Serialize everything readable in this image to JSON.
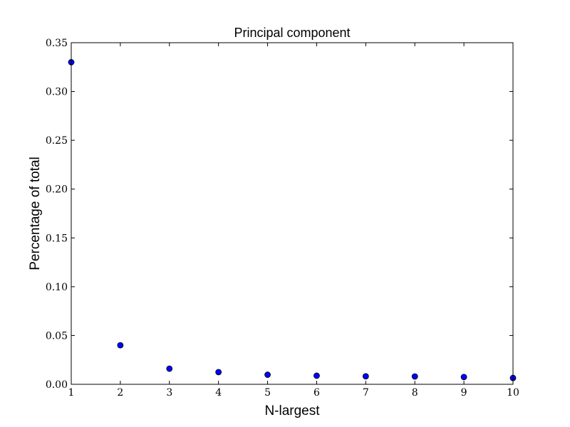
{
  "chart_data": {
    "type": "scatter",
    "title": "Principal component",
    "xlabel": "N-largest",
    "ylabel": "Percentage of total",
    "xlim": [
      1,
      10
    ],
    "ylim": [
      0.0,
      0.35
    ],
    "xticks": [
      1,
      2,
      3,
      4,
      5,
      6,
      7,
      8,
      9,
      10
    ],
    "xtick_labels": [
      "1",
      "2",
      "3",
      "4",
      "5",
      "6",
      "7",
      "8",
      "9",
      "10"
    ],
    "yticks": [
      0.0,
      0.05,
      0.1,
      0.15,
      0.2,
      0.25,
      0.3,
      0.35
    ],
    "ytick_labels": [
      "0.00",
      "0.05",
      "0.10",
      "0.15",
      "0.20",
      "0.25",
      "0.30",
      "0.35"
    ],
    "grid": false,
    "marker_color": "#0000ff",
    "marker_edge_color": "#000000",
    "x": [
      1,
      2,
      3,
      4,
      5,
      6,
      7,
      8,
      9,
      10
    ],
    "y": [
      0.33,
      0.04,
      0.016,
      0.0125,
      0.0098,
      0.0088,
      0.0082,
      0.008,
      0.0075,
      0.0065
    ]
  }
}
